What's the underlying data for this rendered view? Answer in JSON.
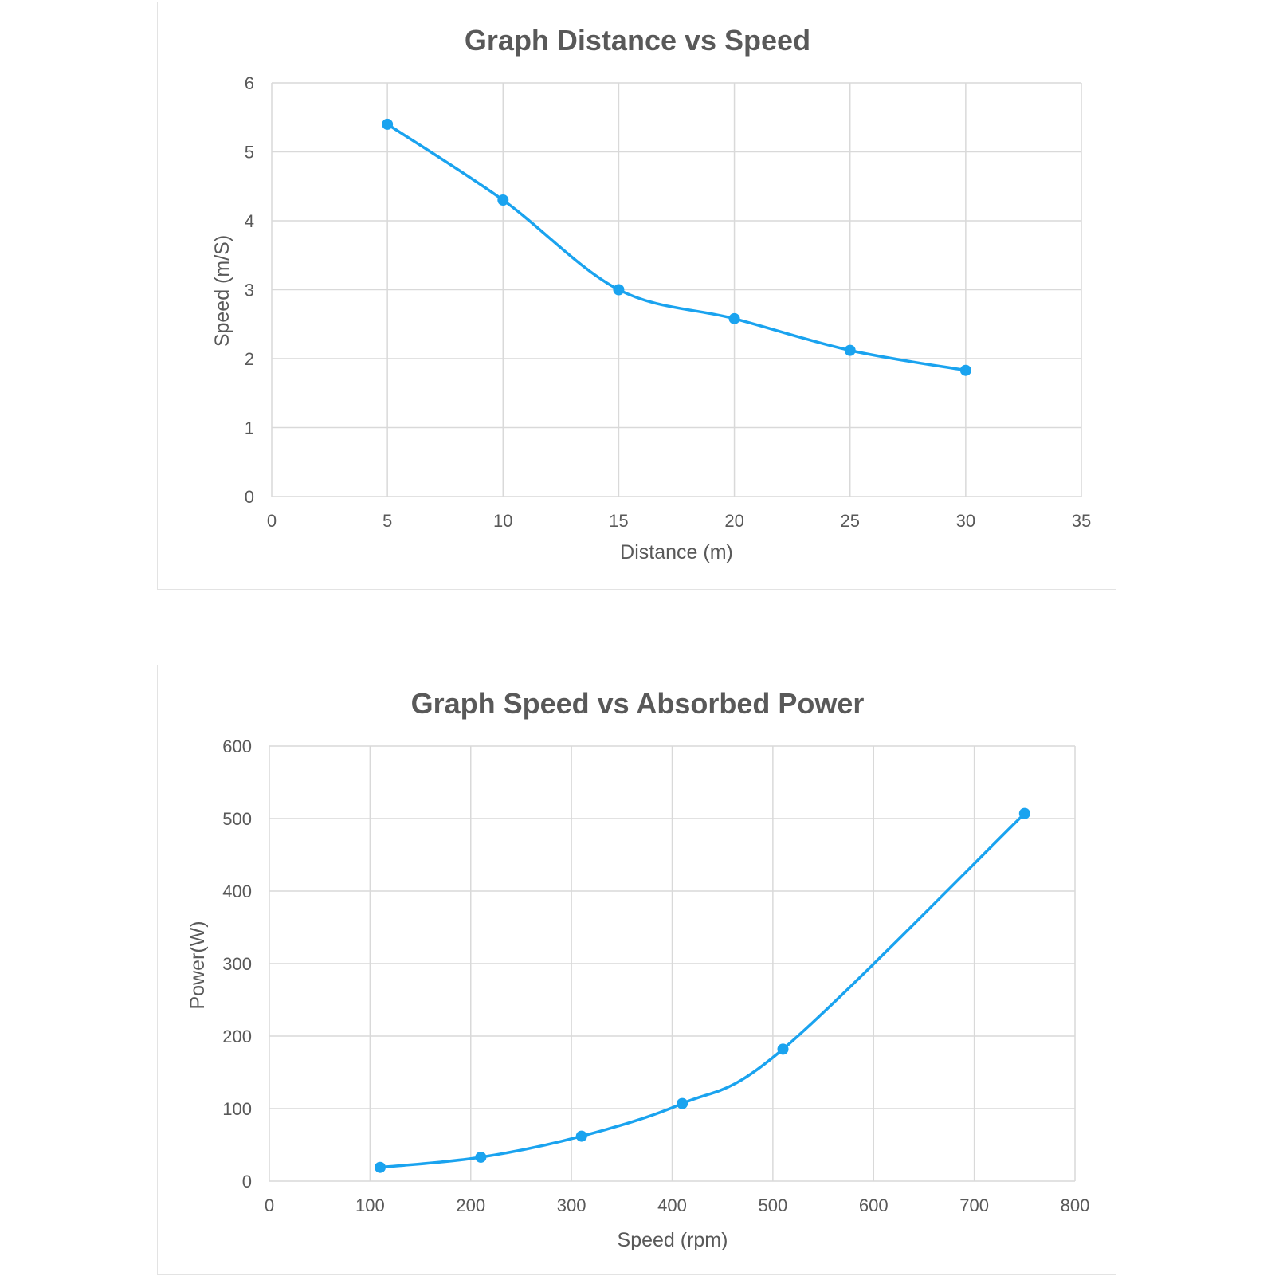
{
  "chart_data": [
    {
      "type": "line",
      "title": "Graph Distance vs Speed",
      "xlabel": "Distance (m)",
      "ylabel": "Speed (m/S)",
      "xlim": [
        0,
        35
      ],
      "ylim": [
        0,
        6
      ],
      "x_ticks": [
        0,
        5,
        10,
        15,
        20,
        25,
        30,
        35
      ],
      "y_ticks": [
        0,
        1,
        2,
        3,
        4,
        5,
        6
      ],
      "grid": true,
      "color": "#1aa3ef",
      "series": [
        {
          "x": [
            5,
            10,
            15,
            20,
            25,
            30
          ],
          "values": [
            5.4,
            4.3,
            3.0,
            2.58,
            2.12,
            1.83
          ]
        }
      ]
    },
    {
      "type": "line",
      "title": "Graph Speed  vs Absorbed Power",
      "xlabel": "Speed (rpm)",
      "ylabel": "Power(W)",
      "xlim": [
        0,
        800
      ],
      "ylim": [
        0,
        600
      ],
      "x_ticks": [
        0,
        100,
        200,
        300,
        400,
        500,
        600,
        700,
        800
      ],
      "y_ticks": [
        0,
        100,
        200,
        300,
        400,
        500,
        600
      ],
      "grid": true,
      "color": "#1aa3ef",
      "series": [
        {
          "x": [
            110,
            210,
            310,
            410,
            510,
            750
          ],
          "values": [
            19,
            33,
            62,
            107,
            182,
            507
          ]
        }
      ]
    }
  ]
}
